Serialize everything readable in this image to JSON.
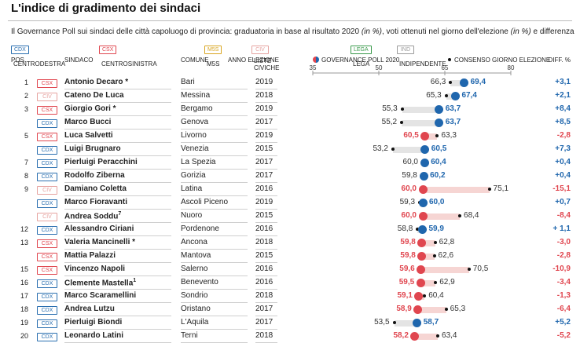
{
  "title": "L'indice di gradimento dei sindaci",
  "subtitle_parts": [
    {
      "t": "Il Governance Poll sui sindaci delle città capoluogo di provincia: graduatoria in base al risultato 2020 ",
      "i": false
    },
    {
      "t": "(in %)",
      "i": true
    },
    {
      "t": ", voti ottenuti nel giorno dell'elezione ",
      "i": false
    },
    {
      "t": "(in %)",
      "i": true
    },
    {
      "t": " e differenza",
      "i": false
    }
  ],
  "legend": [
    {
      "code": "CDX",
      "label": "CENTRODESTRA"
    },
    {
      "code": "CSX",
      "label": "CENTROSINISTRA"
    },
    {
      "code": "M5S",
      "label": "M5S"
    },
    {
      "code": "CIV",
      "label": "LISTE CIVICHE"
    },
    {
      "code": "LEGA",
      "label": "LEGA"
    },
    {
      "code": "IND",
      "label": "INDIPENDENTE"
    }
  ],
  "badge_colors": {
    "CDX": "#2a6fb0",
    "CSX": "#e0464f",
    "M5S": "#d9a520",
    "CIV": "#e6a3a0",
    "LEGA": "#3a9a4b",
    "IND": "#9a9a9a"
  },
  "headers": {
    "pos": "POS.",
    "sindaco": "SINDACO",
    "comune": "COMUNE",
    "anno": "ANNO ELEZIONE",
    "governance": "GOVERNANCE POLL 2020",
    "consenso": "CONSENSO GIORNO ELEZIONE",
    "diff": "DIFF. %"
  },
  "colors": {
    "positive": "#1f66ad",
    "negative": "#e0464f",
    "bar_positive": "#e4e4e4",
    "bar_negative": "#f6d5d3"
  },
  "chart_data": {
    "type": "dot",
    "axis": {
      "ticks": [
        35,
        50,
        65,
        80
      ],
      "min": 35,
      "max": 80
    },
    "series": [
      {
        "name": "GOVERNANCE POLL 2020"
      },
      {
        "name": "CONSENSO GIORNO ELEZIONE"
      }
    ],
    "rows": [
      {
        "pos": "1",
        "party": "CSX",
        "name": "Antonio Decaro *",
        "comune": "Bari",
        "year": "2019",
        "poll": "69,4",
        "election": "66,3",
        "diff": "+3,1"
      },
      {
        "pos": "2",
        "party": "CIV",
        "name": "Cateno De Luca",
        "comune": "Messina",
        "year": "2018",
        "poll": "67,4",
        "election": "65,3",
        "diff": "+2,1"
      },
      {
        "pos": "3",
        "party": "CSX",
        "name": "Giorgio Gori *",
        "comune": "Bergamo",
        "year": "2019",
        "poll": "63,7",
        "election": "55,3",
        "diff": "+8,4"
      },
      {
        "pos": "",
        "party": "CDX",
        "name": "Marco Bucci",
        "comune": "Genova",
        "year": "2017",
        "poll": "63,7",
        "election": "55,2",
        "diff": "+8,5"
      },
      {
        "pos": "5",
        "party": "CSX",
        "name": "Luca Salvetti",
        "comune": "Livorno",
        "year": "2019",
        "poll": "60,5",
        "election": "63,3",
        "diff": "-2,8"
      },
      {
        "pos": "",
        "party": "CDX",
        "name": "Luigi Brugnaro",
        "comune": "Venezia",
        "year": "2015",
        "poll": "60,5",
        "election": "53,2",
        "diff": "+7,3"
      },
      {
        "pos": "7",
        "party": "CDX",
        "name": "Pierluigi Peracchini",
        "comune": "La Spezia",
        "year": "2017",
        "poll": "60,4",
        "election": "60,0",
        "diff": "+0,4"
      },
      {
        "pos": "8",
        "party": "CDX",
        "name": "Rodolfo Ziberna",
        "comune": "Gorizia",
        "year": "2017",
        "poll": "60,2",
        "election": "59,8",
        "diff": "+0,4"
      },
      {
        "pos": "9",
        "party": "CIV",
        "name": "Damiano Coletta",
        "comune": "Latina",
        "year": "2016",
        "poll": "60,0",
        "election": "75,1",
        "diff": "-15,1"
      },
      {
        "pos": "",
        "party": "CDX",
        "name": "Marco Fioravanti",
        "comune": "Ascoli Piceno",
        "year": "2019",
        "poll": "60,0",
        "election": "59,3",
        "diff": "+0,7"
      },
      {
        "pos": "",
        "party": "CIV",
        "name": "Andrea Soddu",
        "sup": "7",
        "comune": "Nuoro",
        "year": "2015",
        "poll": "60,0",
        "election": "68,4",
        "diff": "-8,4"
      },
      {
        "pos": "12",
        "party": "CDX",
        "name": "Alessandro Ciriani",
        "comune": "Pordenone",
        "year": "2016",
        "poll": "59,9",
        "election": "58,8",
        "diff": "+ 1,1"
      },
      {
        "pos": "13",
        "party": "CSX",
        "name": "Valeria Mancinelli *",
        "comune": "Ancona",
        "year": "2018",
        "poll": "59,8",
        "election": "62,8",
        "diff": "-3,0"
      },
      {
        "pos": "",
        "party": "CSX",
        "name": "Mattia Palazzi",
        "comune": "Mantova",
        "year": "2015",
        "poll": "59,8",
        "election": "62,6",
        "diff": "-2,8"
      },
      {
        "pos": "15",
        "party": "CSX",
        "name": "Vincenzo Napoli",
        "comune": "Salerno",
        "year": "2016",
        "poll": "59,6",
        "election": "70,5",
        "diff": "-10,9"
      },
      {
        "pos": "16",
        "party": "CDX",
        "name": "Clemente Mastella",
        "sup": "1",
        "comune": "Benevento",
        "year": "2016",
        "poll": "59,5",
        "election": "62,9",
        "diff": "-3,4"
      },
      {
        "pos": "17",
        "party": "CDX",
        "name": "Marco Scaramellini",
        "comune": "Sondrio",
        "year": "2018",
        "poll": "59,1",
        "election": "60,4",
        "diff": "-1,3"
      },
      {
        "pos": "18",
        "party": "CDX",
        "name": "Andrea Lutzu",
        "comune": "Oristano",
        "year": "2017",
        "poll": "58,9",
        "election": "65,3",
        "diff": "-6,4"
      },
      {
        "pos": "19",
        "party": "CDX",
        "name": "Pierluigi Biondi",
        "comune": "L'Aquila",
        "year": "2017",
        "poll": "58,7",
        "election": "53,5",
        "diff": "+5,2"
      },
      {
        "pos": "20",
        "party": "CDX",
        "name": "Leonardo Latini",
        "comune": "Terni",
        "year": "2018",
        "poll": "58,2",
        "election": "63,4",
        "diff": "-5,2"
      }
    ]
  }
}
